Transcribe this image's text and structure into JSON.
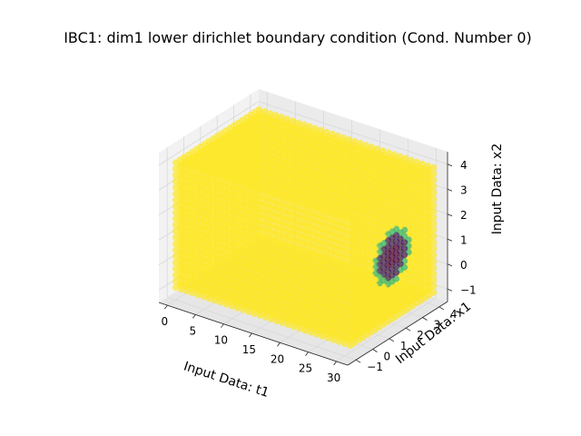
{
  "chart_data": {
    "type": "scatter",
    "projection": "3d",
    "title": "IBC1: dim1 lower dirichlet boundary condition (Cond. Number 0)",
    "xlabel": "Input Data: t1",
    "ylabel": "Input Data: x1",
    "zlabel": "Input Data: x2",
    "x_ticks": [
      "0",
      "5",
      "10",
      "15",
      "20",
      "25",
      "30"
    ],
    "y_ticks": [
      "−1",
      "0",
      "1",
      "2",
      "3",
      "4"
    ],
    "z_ticks": [
      "−1",
      "0",
      "1",
      "2",
      "3",
      "4"
    ],
    "xlim": [
      -1.5,
      32
    ],
    "ylim": [
      -1.5,
      4.5
    ],
    "zlim": [
      -1.5,
      4.5
    ],
    "grid": true,
    "colormap": "viridis",
    "series": [
      {
        "grid_x": {
          "start": 0,
          "stop": 31,
          "step": 1
        },
        "grid_y": {
          "start": -1,
          "stop": 4,
          "step": 0.25
        },
        "grid_z": {
          "start": -1,
          "stop": 4,
          "step": 0.25
        },
        "default_value": 1.0,
        "highlight": {
          "x": 31,
          "center_y": 1.5,
          "center_z": 1.5,
          "outer_radius": 1.1,
          "inner_value": 0.0,
          "ring_value": 0.6
        }
      }
    ],
    "colors": {
      "yellow": "#fde725",
      "yellow_edge": "#f6df1f",
      "purple": "#440154",
      "purple_mid": "#3b1a6b",
      "green": "#35b779",
      "teal": "#21918c",
      "pane_left": "#f2f2f2",
      "pane_right": "#ebebeb",
      "pane_floor": "#e6e6e6",
      "grid": "#d9d9d9"
    }
  }
}
